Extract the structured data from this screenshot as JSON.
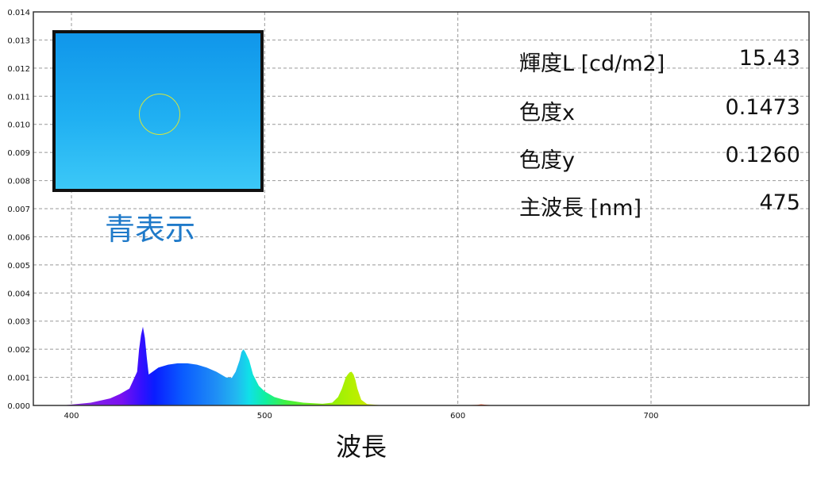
{
  "chart_data": {
    "type": "area",
    "xlabel": "波長",
    "ylabel": "",
    "xlim": [
      380,
      780
    ],
    "ylim": [
      0,
      0.014
    ],
    "x_ticks": [
      400,
      500,
      600,
      700
    ],
    "y_ticks": [
      "0.000",
      "0.001",
      "0.002",
      "0.003",
      "0.004",
      "0.005",
      "0.006",
      "0.007",
      "0.008",
      "0.009",
      "0.010",
      "0.011",
      "0.012",
      "0.013",
      "0.014"
    ],
    "grid": true,
    "series": [
      {
        "x": [
          395,
          400,
          410,
          420,
          425,
          430,
          432,
          434,
          435,
          436,
          437,
          438,
          439,
          440,
          442,
          445,
          450,
          455,
          460,
          465,
          470,
          475,
          480,
          483,
          485,
          487,
          488,
          489,
          490,
          492,
          494,
          497,
          500,
          505,
          510,
          520,
          530,
          535,
          538,
          540,
          542,
          543,
          544,
          545,
          546,
          547,
          548,
          550,
          553,
          560,
          580,
          600,
          610,
          612,
          615,
          620
        ],
        "y": [
          0,
          3e-05,
          0.0001,
          0.00025,
          0.0004,
          0.0006,
          0.0009,
          0.0012,
          0.002,
          0.0025,
          0.0028,
          0.0024,
          0.0017,
          0.0011,
          0.0012,
          0.00135,
          0.00145,
          0.0015,
          0.0015,
          0.00145,
          0.00135,
          0.0012,
          0.001,
          0.00098,
          0.0012,
          0.0016,
          0.0019,
          0.002,
          0.0019,
          0.0016,
          0.0011,
          0.0007,
          0.0005,
          0.0003,
          0.0002,
          0.0001,
          6e-05,
          0.0001,
          0.0003,
          0.0006,
          0.001,
          0.0011,
          0.00118,
          0.0012,
          0.0011,
          0.0009,
          0.0006,
          0.0002,
          5e-05,
          1e-05,
          0.0,
          0.0,
          2e-05,
          4e-05,
          2e-05,
          0.0
        ]
      }
    ]
  },
  "overlay": {
    "caption": "青表示",
    "measurements": [
      {
        "label": "輝度L [cd/m2]",
        "value": "15.43"
      },
      {
        "label": "色度x",
        "value": "0.1473"
      },
      {
        "label": "色度y",
        "value": "0.1260"
      },
      {
        "label": "主波長 [nm]",
        "value": "475"
      }
    ]
  }
}
